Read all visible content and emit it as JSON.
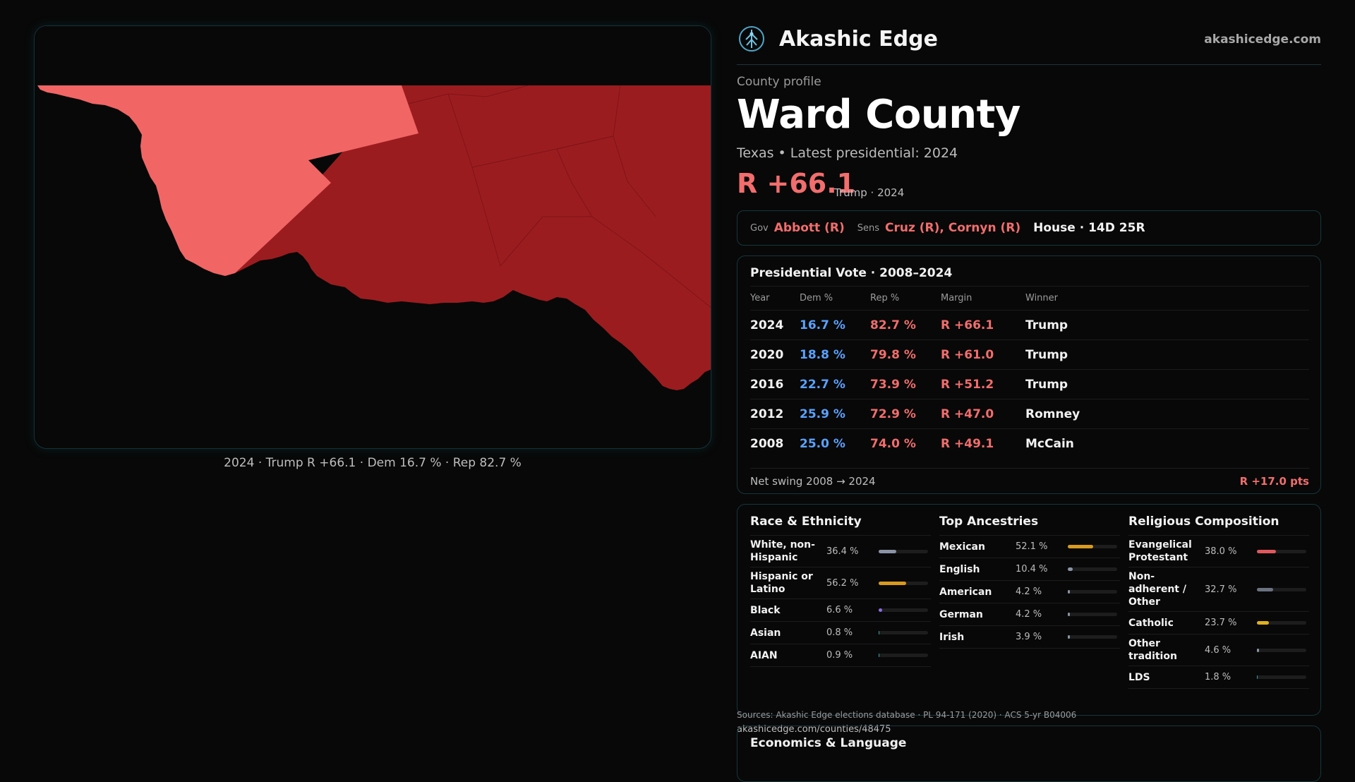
{
  "map": {
    "caption": "2024 · Trump R +66.1 · Dem 16.7 % · Rep 82.7 %",
    "colors": {
      "background": "#080808",
      "strong_r": "#9b1c1f",
      "lean_r": "#f26565",
      "border": "#7d1518"
    }
  },
  "header": {
    "brand": "Akashic Edge",
    "site": "akashicedge.com",
    "logo_icon": "tree-of-life-icon"
  },
  "profile": {
    "label": "County profile",
    "name": "Ward County",
    "subtitle": "Texas • Latest presidential: 2024",
    "margin": "R +66.1",
    "margin_sub": "Trump · 2024"
  },
  "officials": {
    "gov_label": "Gov",
    "gov": "Abbott (R)",
    "sens_label": "Sens",
    "sens": "Cruz (R), Cornyn (R)",
    "house": "House · 14D 25R"
  },
  "presidential": {
    "title": "Presidential Vote · 2008–2024",
    "headers": {
      "year": "Year",
      "dem": "Dem %",
      "rep": "Rep %",
      "margin": "Margin",
      "winner": "Winner"
    },
    "rows": [
      {
        "year": "2024",
        "dem": "16.7 %",
        "rep": "82.7 %",
        "margin": "R +66.1",
        "winner": "Trump"
      },
      {
        "year": "2020",
        "dem": "18.8 %",
        "rep": "79.8 %",
        "margin": "R +61.0",
        "winner": "Trump"
      },
      {
        "year": "2016",
        "dem": "22.7 %",
        "rep": "73.9 %",
        "margin": "R +51.2",
        "winner": "Trump"
      },
      {
        "year": "2012",
        "dem": "25.9 %",
        "rep": "72.9 %",
        "margin": "R +47.0",
        "winner": "Romney"
      },
      {
        "year": "2008",
        "dem": "25.0 %",
        "rep": "74.0 %",
        "margin": "R +49.1",
        "winner": "McCain"
      }
    ],
    "swing_label": "Net swing 2008 → 2024",
    "swing_value": "R +17.0 pts"
  },
  "race": {
    "title": "Race & Ethnicity",
    "rows": [
      {
        "label": "White, non-Hispanic",
        "value": "36.4 %",
        "fraction": 0.364,
        "color": "#8a94a6"
      },
      {
        "label": "Hispanic or Latino",
        "value": "56.2 %",
        "fraction": 0.562,
        "color": "#d99a1e"
      },
      {
        "label": "Black",
        "value": "6.6 %",
        "fraction": 0.066,
        "color": "#8a6ee0"
      },
      {
        "label": "Asian",
        "value": "0.8 %",
        "fraction": 0.008,
        "color": "#3aa0a0"
      },
      {
        "label": "AIAN",
        "value": "0.9 %",
        "fraction": 0.009,
        "color": "#3aa0a0"
      }
    ]
  },
  "ancestry": {
    "title": "Top Ancestries",
    "rows": [
      {
        "label": "Mexican",
        "value": "52.1 %",
        "fraction": 0.521,
        "color": "#d99a1e"
      },
      {
        "label": "English",
        "value": "10.4 %",
        "fraction": 0.104,
        "color": "#8a94a6"
      },
      {
        "label": "American",
        "value": "4.2 %",
        "fraction": 0.042,
        "color": "#8a94a6"
      },
      {
        "label": "German",
        "value": "4.2 %",
        "fraction": 0.042,
        "color": "#8a94a6"
      },
      {
        "label": "Irish",
        "value": "3.9 %",
        "fraction": 0.039,
        "color": "#8a94a6"
      }
    ]
  },
  "religion": {
    "title": "Religious Composition",
    "rows": [
      {
        "label": "Evangelical Protestant",
        "value": "38.0 %",
        "fraction": 0.38,
        "color": "#e0585e"
      },
      {
        "label": "Non-adherent / Other",
        "value": "32.7 %",
        "fraction": 0.327,
        "color": "#6b7280"
      },
      {
        "label": "Catholic",
        "value": "23.7 %",
        "fraction": 0.237,
        "color": "#e0b020"
      },
      {
        "label": "Other tradition",
        "value": "4.6 %",
        "fraction": 0.046,
        "color": "#8a94a6"
      },
      {
        "label": "LDS",
        "value": "1.8 %",
        "fraction": 0.018,
        "color": "#3aa0a0"
      }
    ]
  },
  "footer": {
    "sources": "Sources: Akashic Edge elections database · PL 94-171 (2020) · ACS 5-yr B04006",
    "permalink": "akashicedge.com/counties/48475"
  },
  "econ": {
    "title": "Economics & Language"
  }
}
